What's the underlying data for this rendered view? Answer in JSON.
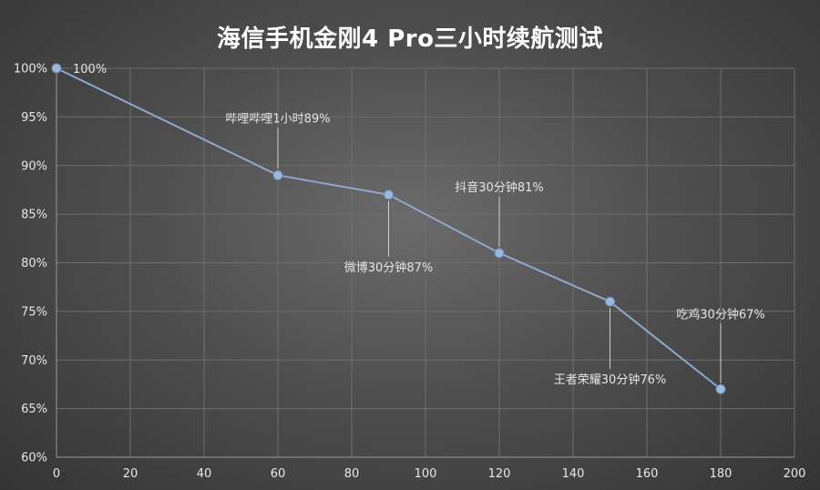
{
  "chart_data": {
    "type": "line",
    "title": "海信手机金刚4 Pro三小时续航测试",
    "xlim": [
      0,
      200
    ],
    "ylim": [
      60,
      100
    ],
    "x_ticks": [
      0,
      20,
      40,
      60,
      80,
      100,
      120,
      140,
      160,
      180,
      200
    ],
    "y_ticks": [
      "60%",
      "65%",
      "70%",
      "75%",
      "80%",
      "85%",
      "90%",
      "95%",
      "100%"
    ],
    "grid": true,
    "series": [
      {
        "x": [
          0,
          60,
          90,
          120,
          150,
          180
        ],
        "y": [
          100,
          89,
          87,
          81,
          76,
          67
        ],
        "labels": [
          "100%",
          "哔哩哔哩1小时89%",
          "微博30分钟87%",
          "抖音30分钟81%",
          "王者荣耀30分钟76%",
          "吃鸡30分钟67%"
        ]
      }
    ],
    "colors": {
      "line": "#8fa8cc",
      "marker": "#9db8de",
      "grid": "#6e6e6e",
      "leader": "#d0d0d0"
    }
  }
}
